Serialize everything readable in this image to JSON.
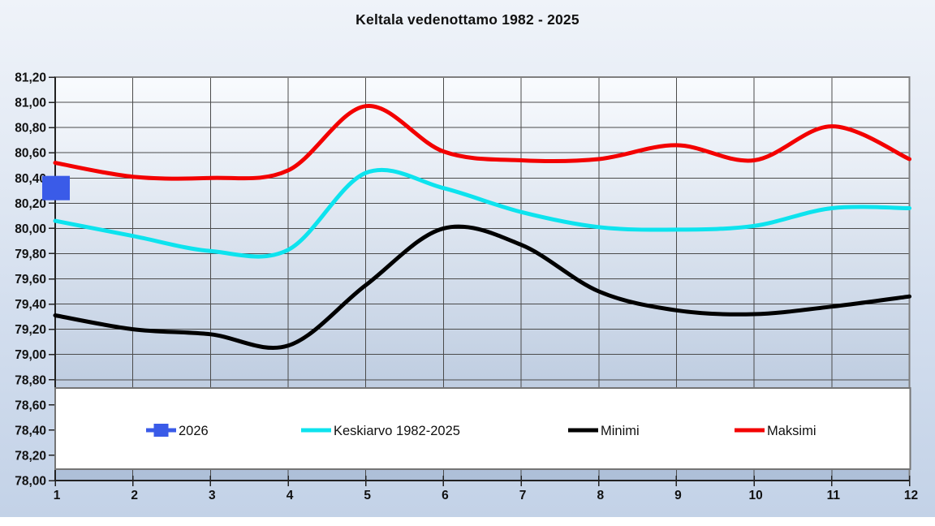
{
  "title": "Keltala vedenottamo 1982 - 2025",
  "colors": {
    "series_2026": "#3A5BE8",
    "keskiarvo": "#0DE3EE",
    "minimi": "#000000",
    "maksimi": "#F30000",
    "gridline": "#4b4b4b",
    "plot_border": "#7f7f7f",
    "axis": "#222222",
    "legend_border": "#757575",
    "legend_fill": "#ffffff",
    "text": "#111111"
  },
  "chart_data": {
    "type": "line",
    "title": "Keltala vedenottamo 1982 - 2025",
    "x": [
      1,
      2,
      3,
      4,
      5,
      6,
      7,
      8,
      9,
      10,
      11,
      12
    ],
    "xlabel": "",
    "ylabel": "",
    "ylim": [
      78.0,
      81.2
    ],
    "y_tick_step": 0.2,
    "decimal_separator": ",",
    "grid": true,
    "legend_position": "bottom",
    "series": [
      {
        "name": "2026",
        "type": "point",
        "marker": "square",
        "color": "#3A5BE8",
        "x": [
          1
        ],
        "values": [
          80.32
        ]
      },
      {
        "name": "Keskiarvo 1982-2025",
        "type": "smooth_line",
        "color": "#0DE3EE",
        "values": [
          80.06,
          79.94,
          79.82,
          79.83,
          80.44,
          80.32,
          80.13,
          80.01,
          79.99,
          80.02,
          80.16,
          80.16
        ]
      },
      {
        "name": "Minimi",
        "type": "smooth_line",
        "color": "#000000",
        "values": [
          79.31,
          79.2,
          79.16,
          79.07,
          79.55,
          80.0,
          79.87,
          79.5,
          79.35,
          79.32,
          79.38,
          79.46
        ]
      },
      {
        "name": "Maksimi",
        "type": "smooth_line",
        "color": "#F30000",
        "values": [
          80.52,
          80.41,
          80.4,
          80.46,
          80.97,
          80.61,
          80.54,
          80.55,
          80.66,
          80.54,
          80.81,
          80.55
        ]
      }
    ],
    "legend": [
      "2026",
      "Keskiarvo 1982-2025",
      "Minimi",
      "Maksimi"
    ]
  }
}
